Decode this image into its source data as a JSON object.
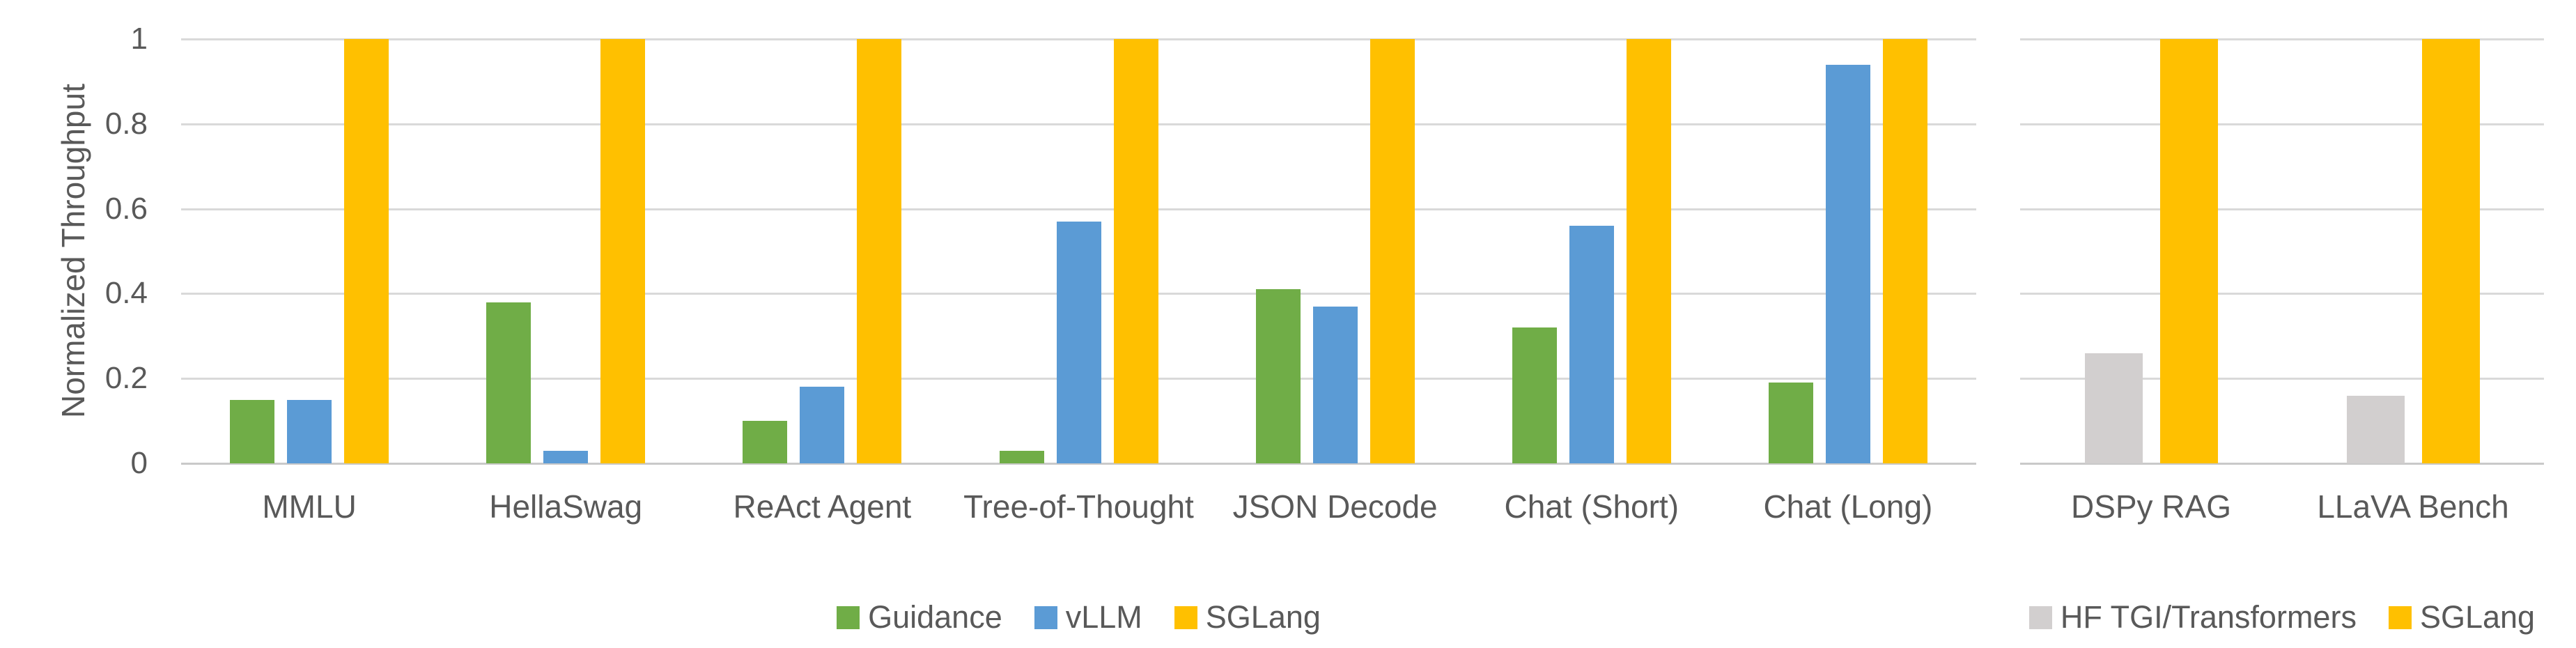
{
  "y_axis": {
    "title": "Normalized Throughput",
    "tick_labels": [
      "1",
      "0.8",
      "0.6",
      "0.4",
      "0.2",
      "0"
    ]
  },
  "colors": {
    "guidance_green": "#70AD47",
    "vllm_blue": "#5B9BD5",
    "sglang_yellow": "#FFC000",
    "hf_gray": "#D2CFCF",
    "text_gray": "#595959",
    "gridline": "#D9D9D9",
    "axis_line": "#C9C9C9",
    "background": "#FFFFFF"
  },
  "chart_data": [
    {
      "type": "bar",
      "title": "",
      "xlabel": "",
      "ylabel": "Normalized Throughput",
      "ylim": [
        0,
        1
      ],
      "yticks": [
        0,
        0.2,
        0.4,
        0.6,
        0.8,
        1
      ],
      "grid": true,
      "legend_position": "bottom",
      "categories": [
        "MMLU",
        "HellaSwag",
        "ReAct Agent",
        "Tree-of-Thought",
        "JSON Decode",
        "Chat (Short)",
        "Chat (Long)"
      ],
      "series": [
        {
          "name": "Guidance",
          "color": "#70AD47",
          "values": [
            0.15,
            0.38,
            0.1,
            0.03,
            0.41,
            0.32,
            0.19
          ]
        },
        {
          "name": "vLLM",
          "color": "#5B9BD5",
          "values": [
            0.15,
            0.03,
            0.18,
            0.57,
            0.37,
            0.56,
            0.94
          ]
        },
        {
          "name": "SGLang",
          "color": "#FFC000",
          "values": [
            1,
            1,
            1,
            1,
            1,
            1,
            1
          ]
        }
      ]
    },
    {
      "type": "bar",
      "title": "",
      "xlabel": "",
      "ylabel": "",
      "ylim": [
        0,
        1
      ],
      "yticks": [
        0,
        0.2,
        0.4,
        0.6,
        0.8,
        1
      ],
      "grid": true,
      "legend_position": "bottom",
      "categories": [
        "DSPy RAG",
        "LLaVA Bench"
      ],
      "series": [
        {
          "name": "HF TGI/Transformers",
          "color": "#D2CFCF",
          "values": [
            0.26,
            0.16
          ]
        },
        {
          "name": "SGLang",
          "color": "#FFC000",
          "values": [
            1,
            1
          ]
        }
      ]
    }
  ]
}
